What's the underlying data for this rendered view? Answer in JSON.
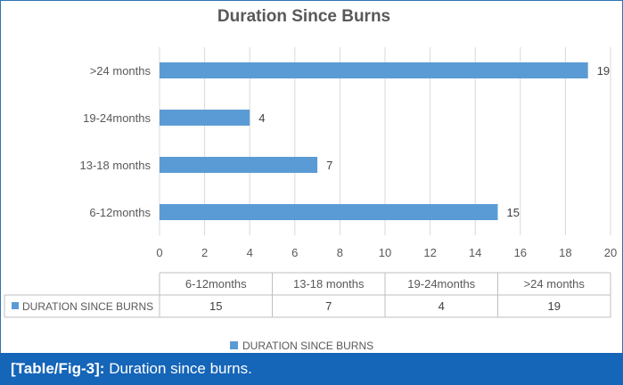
{
  "chart_data": {
    "type": "bar",
    "orientation": "horizontal",
    "title": "Duration Since Burns",
    "categories": [
      "6-12months",
      "13-18 months",
      "19-24months",
      ">24 months"
    ],
    "series": [
      {
        "name": "DURATION SINCE BURNS",
        "values": [
          15,
          7,
          4,
          19
        ],
        "color": "#5b9bd5"
      }
    ],
    "xlim": [
      0,
      20
    ],
    "xticks": [
      0,
      2,
      4,
      6,
      8,
      10,
      12,
      14,
      16,
      18,
      20
    ],
    "grid": true,
    "data_labels": true,
    "data_table": true,
    "legend": "bottom"
  },
  "caption": {
    "label": "[Table/Fig-3]:",
    "text": "Duration since burns."
  },
  "colors": {
    "bar": "#5b9bd5",
    "caption_bg": "#1565b8",
    "frame": "#2f75b5",
    "grid": "#d9d9d9",
    "text": "#595959"
  }
}
